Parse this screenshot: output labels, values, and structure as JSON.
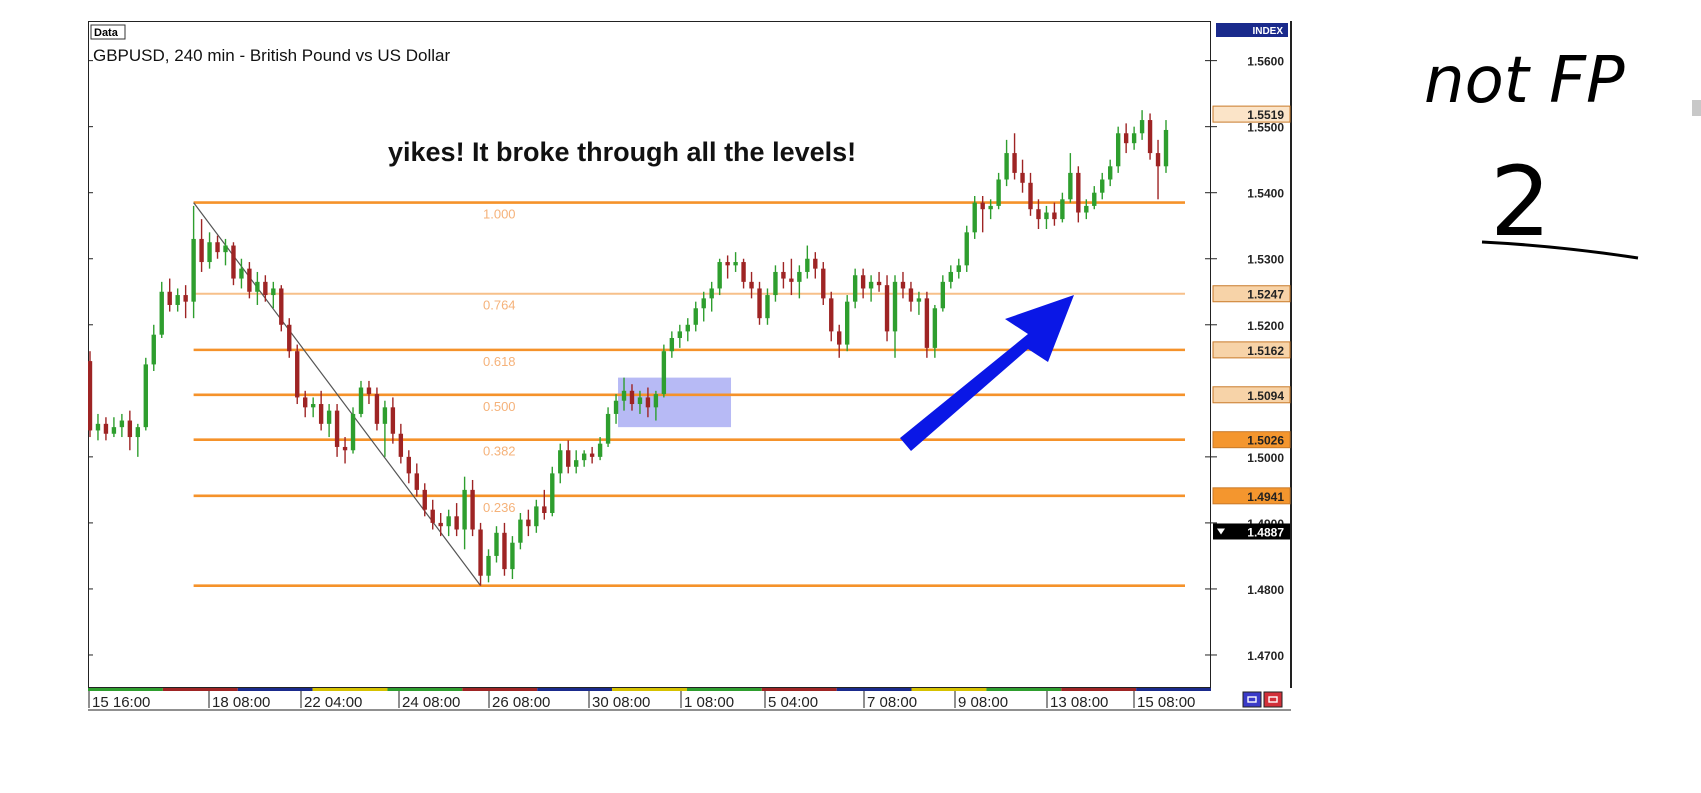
{
  "chart_data": {
    "type": "candlestick",
    "title": "GBPUSD, 240 min - British Pound vs US Dollar",
    "data_tag": "Data",
    "index_label": "INDEX",
    "annotation": "yikes! It broke through all the levels!",
    "ylim": [
      1.465,
      1.566
    ],
    "y_ticks": [
      {
        "value": 1.56,
        "label": "1.5600"
      },
      {
        "value": 1.55,
        "label": "1.5500"
      },
      {
        "value": 1.54,
        "label": "1.5400"
      },
      {
        "value": 1.53,
        "label": "1.5300"
      },
      {
        "value": 1.52,
        "label": "1.5200"
      },
      {
        "value": 1.5,
        "label": "1.5000"
      },
      {
        "value": 1.49,
        "label": "1.4900"
      },
      {
        "value": 1.48,
        "label": "1.4800"
      },
      {
        "value": 1.47,
        "label": "1.4700"
      }
    ],
    "x_ticks": [
      "15 16:00",
      "18 08:00",
      "22 04:00",
      "24 08:00",
      "26 08:00",
      "30 08:00",
      "1 08:00",
      "5 04:00",
      "7 08:00",
      "9 08:00",
      "13 08:00",
      "15 08:00"
    ],
    "current_price": {
      "value": 1.4887,
      "label": "1.4887"
    },
    "fib_levels": [
      {
        "ratio": "1.000",
        "value": 1.5385,
        "tag": ""
      },
      {
        "ratio": "0.764",
        "value": 1.5247,
        "tag": "1.5247"
      },
      {
        "ratio": "0.618",
        "value": 1.5162,
        "tag": "1.5162"
      },
      {
        "ratio": "0.500",
        "value": 1.5094,
        "tag": "1.5094"
      },
      {
        "ratio": "0.382",
        "value": 1.5026,
        "tag": "1.5026"
      },
      {
        "ratio": "0.236",
        "value": 1.4941,
        "tag": "1.4941"
      },
      {
        "ratio": "",
        "value": 1.4805,
        "tag": ""
      }
    ],
    "top_tag": {
      "value": 1.5519,
      "label": "1.5519"
    },
    "swing": {
      "high_value": 1.5385,
      "low_value": 1.4805
    },
    "highlight_zone": {
      "low": 1.5045,
      "high": 1.512
    },
    "colors": {
      "bull": "#2e9e2e",
      "bear": "#9e2424",
      "fib": "#f5922a",
      "fib_light": "#f7c08a",
      "arrow": "#0a17e6",
      "zone": "#9fa3f2",
      "tag_light": "#f7d3a8",
      "tag_dark": "#f4962e",
      "current": "#000000",
      "index_bg": "#1a2a8c"
    },
    "candles": [
      [
        1.5145,
        1.516,
        1.503,
        1.504
      ],
      [
        1.504,
        1.5065,
        1.5025,
        1.505
      ],
      [
        1.505,
        1.506,
        1.5025,
        1.5035
      ],
      [
        1.5035,
        1.506,
        1.503,
        1.5045
      ],
      [
        1.5045,
        1.5065,
        1.503,
        1.5055
      ],
      [
        1.5055,
        1.507,
        1.501,
        1.503
      ],
      [
        1.503,
        1.505,
        1.5,
        1.5045
      ],
      [
        1.5045,
        1.515,
        1.504,
        1.514
      ],
      [
        1.514,
        1.52,
        1.513,
        1.5185
      ],
      [
        1.5185,
        1.5265,
        1.518,
        1.525
      ],
      [
        1.525,
        1.527,
        1.522,
        1.523
      ],
      [
        1.523,
        1.5255,
        1.522,
        1.5245
      ],
      [
        1.5245,
        1.526,
        1.521,
        1.5235
      ],
      [
        1.5235,
        1.538,
        1.521,
        1.533
      ],
      [
        1.533,
        1.536,
        1.528,
        1.5295
      ],
      [
        1.5295,
        1.534,
        1.5285,
        1.5325
      ],
      [
        1.5325,
        1.5335,
        1.53,
        1.531
      ],
      [
        1.531,
        1.533,
        1.529,
        1.532
      ],
      [
        1.532,
        1.5325,
        1.526,
        1.527
      ],
      [
        1.527,
        1.53,
        1.5255,
        1.5285
      ],
      [
        1.5285,
        1.5295,
        1.524,
        1.525
      ],
      [
        1.525,
        1.528,
        1.523,
        1.5265
      ],
      [
        1.5265,
        1.5275,
        1.5235,
        1.5245
      ],
      [
        1.5245,
        1.5265,
        1.5225,
        1.5255
      ],
      [
        1.5255,
        1.526,
        1.519,
        1.52
      ],
      [
        1.52,
        1.521,
        1.515,
        1.516
      ],
      [
        1.516,
        1.517,
        1.508,
        1.509
      ],
      [
        1.509,
        1.51,
        1.506,
        1.5075
      ],
      [
        1.5075,
        1.509,
        1.506,
        1.508
      ],
      [
        1.508,
        1.51,
        1.504,
        1.505
      ],
      [
        1.505,
        1.508,
        1.503,
        1.507
      ],
      [
        1.507,
        1.508,
        1.5,
        1.5015
      ],
      [
        1.5015,
        1.503,
        1.499,
        1.501
      ],
      [
        1.501,
        1.5075,
        1.5005,
        1.5065
      ],
      [
        1.5065,
        1.5115,
        1.506,
        1.5105
      ],
      [
        1.5105,
        1.5115,
        1.508,
        1.5095
      ],
      [
        1.5095,
        1.5105,
        1.504,
        1.505
      ],
      [
        1.505,
        1.5085,
        1.5,
        1.5075
      ],
      [
        1.5075,
        1.509,
        1.502,
        1.5035
      ],
      [
        1.5035,
        1.505,
        1.499,
        1.5
      ],
      [
        1.5,
        1.501,
        1.496,
        1.4975
      ],
      [
        1.4975,
        1.499,
        1.494,
        1.495
      ],
      [
        1.495,
        1.496,
        1.491,
        1.492
      ],
      [
        1.492,
        1.4935,
        1.489,
        1.49
      ],
      [
        1.49,
        1.4915,
        1.488,
        1.4895
      ],
      [
        1.4895,
        1.492,
        1.488,
        1.491
      ],
      [
        1.491,
        1.493,
        1.488,
        1.489
      ],
      [
        1.489,
        1.497,
        1.486,
        1.495
      ],
      [
        1.495,
        1.4965,
        1.488,
        1.489
      ],
      [
        1.489,
        1.49,
        1.4805,
        1.482
      ],
      [
        1.482,
        1.486,
        1.481,
        1.485
      ],
      [
        1.485,
        1.4895,
        1.484,
        1.4885
      ],
      [
        1.4885,
        1.49,
        1.482,
        1.483
      ],
      [
        1.483,
        1.488,
        1.4815,
        1.487
      ],
      [
        1.487,
        1.4915,
        1.486,
        1.4905
      ],
      [
        1.4905,
        1.492,
        1.488,
        1.4895
      ],
      [
        1.4895,
        1.4935,
        1.4885,
        1.4925
      ],
      [
        1.4925,
        1.495,
        1.4905,
        1.4915
      ],
      [
        1.4915,
        1.4985,
        1.491,
        1.4975
      ],
      [
        1.4975,
        1.502,
        1.496,
        1.501
      ],
      [
        1.501,
        1.5025,
        1.4975,
        1.4985
      ],
      [
        1.4985,
        1.501,
        1.4975,
        1.4995
      ],
      [
        1.4995,
        1.501,
        1.4985,
        1.5005
      ],
      [
        1.5005,
        1.5015,
        1.499,
        1.5
      ],
      [
        1.5,
        1.503,
        1.4995,
        1.502
      ],
      [
        1.502,
        1.5075,
        1.5015,
        1.5065
      ],
      [
        1.5065,
        1.5095,
        1.505,
        1.5085
      ],
      [
        1.5085,
        1.512,
        1.507,
        1.51
      ],
      [
        1.51,
        1.511,
        1.507,
        1.508
      ],
      [
        1.508,
        1.51,
        1.5065,
        1.509
      ],
      [
        1.509,
        1.5105,
        1.506,
        1.5075
      ],
      [
        1.5075,
        1.51,
        1.5055,
        1.5095
      ],
      [
        1.5095,
        1.517,
        1.509,
        1.516
      ],
      [
        1.516,
        1.519,
        1.515,
        1.518
      ],
      [
        1.518,
        1.52,
        1.5165,
        1.519
      ],
      [
        1.519,
        1.521,
        1.5175,
        1.52
      ],
      [
        1.52,
        1.5235,
        1.519,
        1.5225
      ],
      [
        1.5225,
        1.525,
        1.5205,
        1.524
      ],
      [
        1.524,
        1.5265,
        1.522,
        1.5255
      ],
      [
        1.5255,
        1.53,
        1.5245,
        1.5295
      ],
      [
        1.5295,
        1.5305,
        1.527,
        1.529
      ],
      [
        1.529,
        1.531,
        1.528,
        1.5295
      ],
      [
        1.5295,
        1.53,
        1.5255,
        1.5265
      ],
      [
        1.5265,
        1.528,
        1.524,
        1.5255
      ],
      [
        1.5255,
        1.5265,
        1.52,
        1.521
      ],
      [
        1.521,
        1.5255,
        1.52,
        1.5245
      ],
      [
        1.5245,
        1.529,
        1.5235,
        1.528
      ],
      [
        1.528,
        1.5295,
        1.5255,
        1.527
      ],
      [
        1.527,
        1.53,
        1.5245,
        1.5265
      ],
      [
        1.5265,
        1.529,
        1.524,
        1.528
      ],
      [
        1.528,
        1.532,
        1.527,
        1.53
      ],
      [
        1.53,
        1.531,
        1.527,
        1.5285
      ],
      [
        1.5285,
        1.5295,
        1.523,
        1.524
      ],
      [
        1.524,
        1.525,
        1.5175,
        1.519
      ],
      [
        1.519,
        1.52,
        1.515,
        1.517
      ],
      [
        1.517,
        1.5245,
        1.516,
        1.5235
      ],
      [
        1.5235,
        1.5285,
        1.5225,
        1.5275
      ],
      [
        1.5275,
        1.5285,
        1.524,
        1.5255
      ],
      [
        1.5255,
        1.5275,
        1.5235,
        1.5265
      ],
      [
        1.5265,
        1.528,
        1.525,
        1.526
      ],
      [
        1.526,
        1.5275,
        1.5175,
        1.519
      ],
      [
        1.519,
        1.5275,
        1.515,
        1.5265
      ],
      [
        1.5265,
        1.528,
        1.524,
        1.5255
      ],
      [
        1.5255,
        1.5265,
        1.522,
        1.5235
      ],
      [
        1.5235,
        1.525,
        1.5215,
        1.524
      ],
      [
        1.524,
        1.525,
        1.515,
        1.5165
      ],
      [
        1.5165,
        1.523,
        1.515,
        1.5225
      ],
      [
        1.5225,
        1.5275,
        1.522,
        1.5265
      ],
      [
        1.5265,
        1.529,
        1.5255,
        1.528
      ],
      [
        1.528,
        1.53,
        1.527,
        1.529
      ],
      [
        1.529,
        1.535,
        1.528,
        1.534
      ],
      [
        1.534,
        1.5395,
        1.533,
        1.5385
      ],
      [
        1.5385,
        1.5395,
        1.534,
        1.5375
      ],
      [
        1.5375,
        1.539,
        1.536,
        1.538
      ],
      [
        1.538,
        1.543,
        1.5375,
        1.542
      ],
      [
        1.542,
        1.548,
        1.541,
        1.546
      ],
      [
        1.546,
        1.549,
        1.542,
        1.543
      ],
      [
        1.543,
        1.545,
        1.54,
        1.5415
      ],
      [
        1.5415,
        1.543,
        1.5365,
        1.5375
      ],
      [
        1.5375,
        1.539,
        1.5345,
        1.536
      ],
      [
        1.536,
        1.538,
        1.5345,
        1.537
      ],
      [
        1.537,
        1.5385,
        1.535,
        1.536
      ],
      [
        1.536,
        1.54,
        1.5355,
        1.539
      ],
      [
        1.539,
        1.546,
        1.5385,
        1.543
      ],
      [
        1.543,
        1.544,
        1.5355,
        1.537
      ],
      [
        1.537,
        1.539,
        1.536,
        1.538
      ],
      [
        1.538,
        1.541,
        1.5375,
        1.54
      ],
      [
        1.54,
        1.543,
        1.539,
        1.542
      ],
      [
        1.542,
        1.545,
        1.541,
        1.544
      ],
      [
        1.544,
        1.55,
        1.543,
        1.549
      ],
      [
        1.549,
        1.5505,
        1.546,
        1.5475
      ],
      [
        1.5475,
        1.55,
        1.5465,
        1.549
      ],
      [
        1.549,
        1.5525,
        1.548,
        1.551
      ],
      [
        1.551,
        1.552,
        1.545,
        1.546
      ],
      [
        1.546,
        1.548,
        1.539,
        1.544
      ],
      [
        1.544,
        1.551,
        1.543,
        1.5495
      ]
    ]
  },
  "handwriting": {
    "line1": "not FP",
    "line2": "2"
  }
}
